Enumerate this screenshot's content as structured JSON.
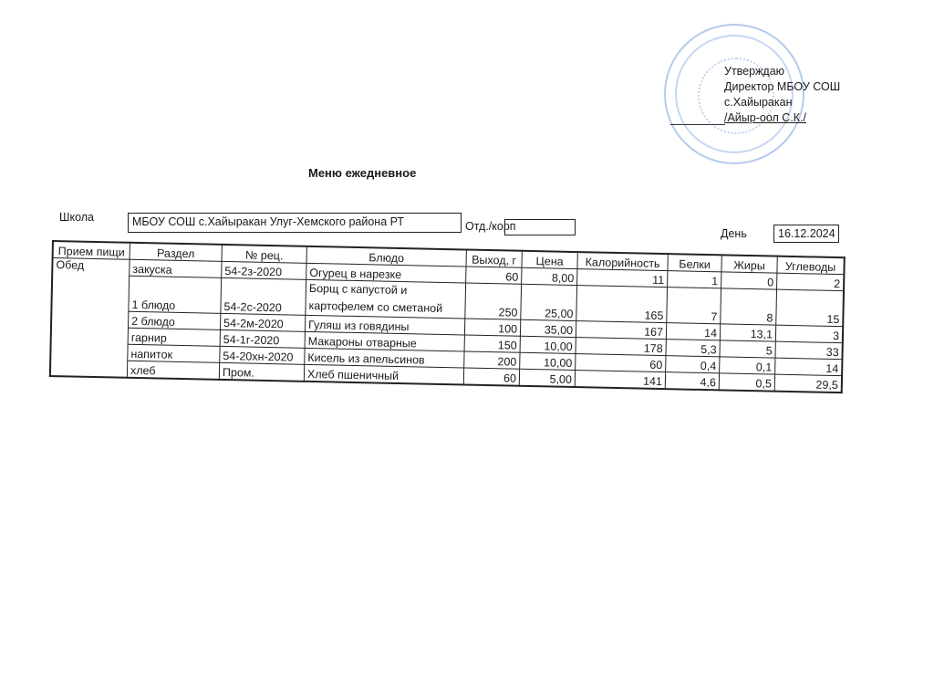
{
  "approval": {
    "line1": "Утверждаю",
    "line2": "Директор МБОУ СОШ",
    "line3": "с.Хайыракан",
    "line4": "/Айыр-оол С.К./"
  },
  "title": "Меню ежедневное",
  "school_label": "Школа",
  "school_value": "МБОУ СОШ с.Хайыракан Улуг-Хемского района РТ",
  "dept_label": "Отд./корп",
  "dept_value": "",
  "day_label": "День",
  "day_value": "16.12.2024",
  "table": {
    "headers": [
      "Прием пищи",
      "Раздел",
      "№ рец.",
      "Блюдо",
      "Выход, г",
      "Цена",
      "Калорийность",
      "Белки",
      "Жиры",
      "Углеводы"
    ],
    "meal": "Обед",
    "rows": [
      {
        "section": "закуска",
        "recipe": "54-2з-2020",
        "dish": "Огурец в нарезке",
        "dish2": "",
        "yield": "60",
        "price": "8,00",
        "kcal": "11",
        "protein": "1",
        "fat": "0",
        "carbs": "2"
      },
      {
        "section": "1 блюдо",
        "recipe": "54-2с-2020",
        "dish": "Борщ с капустой и",
        "dish2": "картофелем со сметаной",
        "yield": "250",
        "price": "25,00",
        "kcal": "165",
        "protein": "7",
        "fat": "8",
        "carbs": "15"
      },
      {
        "section": "2 блюдо",
        "recipe": "54-2м-2020",
        "dish": "Гуляш из говядины",
        "dish2": "",
        "yield": "100",
        "price": "35,00",
        "kcal": "167",
        "protein": "14",
        "fat": "13,1",
        "carbs": "3"
      },
      {
        "section": "гарнир",
        "recipe": "54-1г-2020",
        "dish": "Макароны отварные",
        "dish2": "",
        "yield": "150",
        "price": "10,00",
        "kcal": "178",
        "protein": "5,3",
        "fat": "5",
        "carbs": "33"
      },
      {
        "section": "напиток",
        "recipe": "54-20хн-2020",
        "dish": "Кисель из апельсинов",
        "dish2": "",
        "yield": "200",
        "price": "10,00",
        "kcal": "60",
        "protein": "0,4",
        "fat": "0,1",
        "carbs": "14"
      },
      {
        "section": "хлеб",
        "recipe": "Пром.",
        "dish": "Хлеб пшеничный",
        "dish2": "",
        "yield": "60",
        "price": "5,00",
        "kcal": "141",
        "protein": "4,6",
        "fat": "0,5",
        "carbs": "29,5"
      }
    ]
  }
}
